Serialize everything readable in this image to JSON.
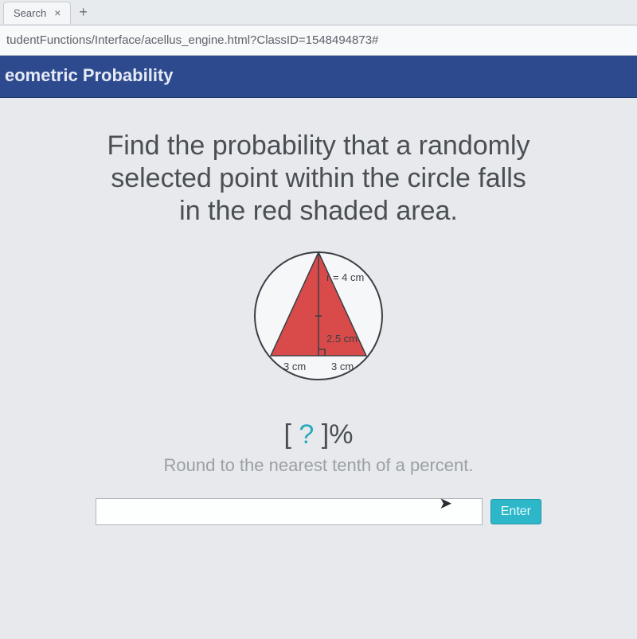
{
  "browser": {
    "tab_title": "Search",
    "url": "tudentFunctions/Interface/acellus_engine.html?ClassID=1548494873#"
  },
  "header": {
    "title": "eometric Probability",
    "bg_color": "#2e4a8f",
    "text_color": "#e6eaf4"
  },
  "question": {
    "line1": "Find the probability that a randomly",
    "line2": "selected point within the circle falls",
    "line3": "in the red shaded area."
  },
  "figure": {
    "type": "circle_with_inscribed_triangle",
    "circle": {
      "radius_cm": 4,
      "radius_label": "r = 4 cm",
      "stroke": "#3a3f45",
      "fill": "#f6f7f9"
    },
    "triangle": {
      "fill": "#d94b4b",
      "stroke": "#3a3f45",
      "height_total_cm": 6.5,
      "height_lower_cm": 2.5,
      "base_left_cm": 3,
      "base_right_cm": 3,
      "label_height_lower": "2.5 cm",
      "label_base_left": "3 cm",
      "label_base_right": "3 cm"
    },
    "label_color": "#3a3f45",
    "label_fontsize": 13
  },
  "answer": {
    "template_left": "[ ",
    "placeholder": "?",
    "template_right": " ]%",
    "placeholder_color": "#2aa8bc"
  },
  "hint": "Round to the nearest tenth of a percent.",
  "input": {
    "value": "",
    "enter_label": "Enter",
    "enter_bg": "#2eb7c9"
  }
}
